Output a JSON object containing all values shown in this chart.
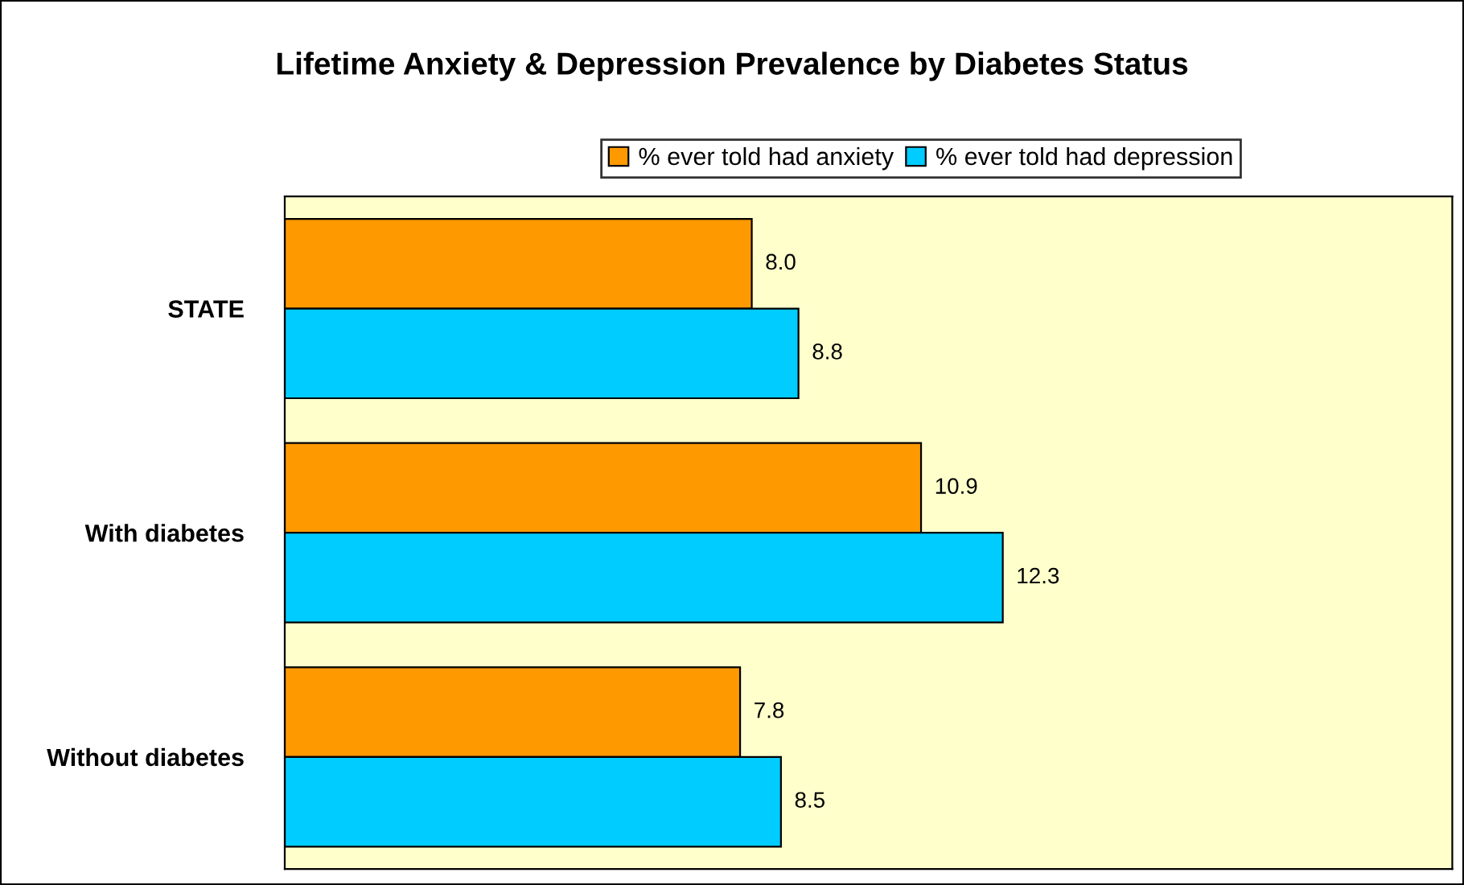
{
  "chart_data": {
    "type": "bar",
    "orientation": "horizontal",
    "title": "Lifetime Anxiety & Depression Prevalence by Diabetes Status",
    "categories": [
      "STATE",
      "With diabetes",
      "Without diabetes"
    ],
    "series": [
      {
        "name": "% ever told had anxiety",
        "color": "#ff9900",
        "values": [
          8.0,
          10.9,
          7.8
        ],
        "value_labels": [
          "8.0",
          "10.9",
          "7.8"
        ]
      },
      {
        "name": "% ever told had depression",
        "color": "#00ccff",
        "values": [
          8.8,
          12.3,
          8.5
        ],
        "value_labels": [
          "8.8",
          "12.3",
          "8.5"
        ]
      }
    ],
    "xlim": [
      0,
      20
    ],
    "grid": false,
    "legend": "top",
    "tick_labels": "y"
  }
}
